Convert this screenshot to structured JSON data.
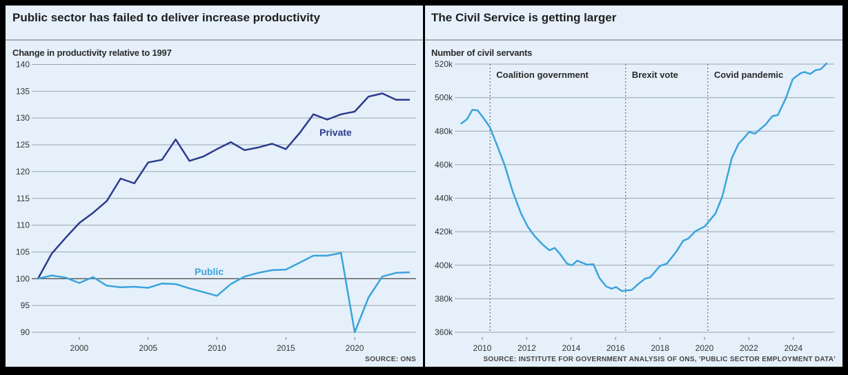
{
  "colors": {
    "private": "#2b3a8c",
    "public": "#3aa3dc",
    "panel": "#e5f0fa",
    "grid": "#9aa4ac"
  },
  "chart_data": [
    {
      "type": "line",
      "title": "Public sector has failed to deliver increase productivity",
      "ylabel": "Change in productivity relative to 1997",
      "source": "SOURCE: ONS",
      "ylim": [
        90,
        140
      ],
      "yticks": [
        90,
        95,
        100,
        105,
        110,
        115,
        120,
        125,
        130,
        135,
        140
      ],
      "xlim": [
        1997,
        2024
      ],
      "xticks": [
        2000,
        2005,
        2010,
        2015,
        2020
      ],
      "x": [
        1997,
        1998,
        1999,
        2000,
        2001,
        2002,
        2003,
        2004,
        2005,
        2006,
        2007,
        2008,
        2009,
        2010,
        2011,
        2012,
        2013,
        2014,
        2015,
        2016,
        2017,
        2018,
        2019,
        2020,
        2021,
        2022,
        2023,
        2024
      ],
      "series": [
        {
          "name": "Private",
          "values": [
            100,
            104.7,
            107.6,
            110.4,
            112.3,
            114.5,
            118.7,
            117.8,
            121.7,
            122.2,
            126,
            122,
            122.8,
            124.2,
            125.5,
            124,
            124.5,
            125.2,
            124.2,
            127.2,
            130.7,
            129.7,
            130.7,
            131.2,
            134,
            134.6,
            133.4,
            133.4
          ]
        },
        {
          "name": "Public",
          "values": [
            100,
            100.6,
            100.2,
            99.2,
            100.3,
            98.7,
            98.4,
            98.5,
            98.3,
            99.1,
            99,
            98.2,
            97.5,
            96.8,
            99,
            100.4,
            101.1,
            101.6,
            101.7,
            103,
            104.3,
            104.3,
            104.8,
            90,
            96.5,
            100.4,
            101.1,
            101.2
          ]
        }
      ]
    },
    {
      "type": "line",
      "title": "The Civil Service is getting larger",
      "ylabel": "Number of civil servants",
      "source": "SOURCE: INSTITUTE FOR GOVERNMENT ANALYSIS OF ONS, 'PUBLIC SECTOR EMPLOYMENT DATA'",
      "ylim": [
        360,
        520
      ],
      "yticks": [
        360,
        380,
        400,
        420,
        440,
        460,
        480,
        500,
        520
      ],
      "ytick_labels": [
        "360k",
        "380k",
        "400k",
        "420k",
        "440k",
        "460k",
        "480k",
        "500k",
        "520k"
      ],
      "xlim": [
        2008.3,
        2025.7
      ],
      "xticks": [
        2010,
        2012,
        2014,
        2016,
        2018,
        2020,
        2022,
        2024
      ],
      "annotations": [
        {
          "x": 2010.35,
          "label": "Coalition government"
        },
        {
          "x": 2016.45,
          "label": "Brexit vote"
        },
        {
          "x": 2020.15,
          "label": "Covid pandemic"
        }
      ],
      "series": [
        {
          "name": "Civil servants (thousands)",
          "x": [
            2009.03,
            2009.31,
            2009.55,
            2009.79,
            2010.04,
            2010.34,
            2010.64,
            2011.01,
            2011.37,
            2011.74,
            2012.04,
            2012.35,
            2012.71,
            2013.02,
            2013.26,
            2013.5,
            2013.81,
            2014.03,
            2014.27,
            2014.72,
            2015.0,
            2015.27,
            2015.57,
            2015.82,
            2016.02,
            2016.28,
            2016.73,
            2017.03,
            2017.34,
            2017.55,
            2018.0,
            2018.31,
            2018.73,
            2019.04,
            2019.28,
            2019.59,
            2020.01,
            2020.5,
            2020.8,
            2021.23,
            2021.53,
            2021.78,
            2022.02,
            2022.26,
            2022.75,
            2023.05,
            2023.3,
            2023.66,
            2023.97,
            2024.33,
            2024.51,
            2024.76,
            2025.0,
            2025.24,
            2025.52
          ],
          "values": [
            484.3,
            487.1,
            492.7,
            492.4,
            488.1,
            482.4,
            472.4,
            459.6,
            443.9,
            431,
            423.1,
            417.4,
            412.4,
            408.9,
            410.3,
            406.7,
            401,
            399.9,
            402.7,
            400.3,
            400.6,
            392.4,
            387.4,
            386,
            387,
            384.6,
            385.3,
            388.9,
            392.1,
            392.7,
            399.6,
            401,
            408.1,
            414.6,
            416,
            420.3,
            423.1,
            431,
            441,
            463.9,
            472.4,
            476,
            479.6,
            478.4,
            483.9,
            488.9,
            489.6,
            499.6,
            511,
            514.6,
            515.3,
            514.1,
            516.4,
            517,
            520.7
          ]
        }
      ]
    }
  ]
}
